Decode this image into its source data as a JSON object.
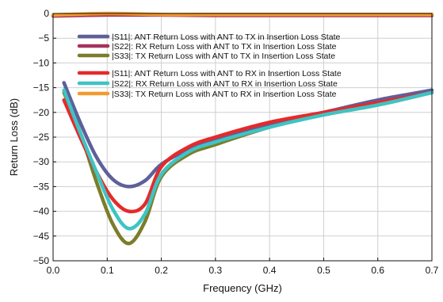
{
  "chart_data": {
    "type": "line",
    "xlabel": "Frequency (GHz)",
    "ylabel": "Return Loss (dB)",
    "xlim": [
      0,
      0.7
    ],
    "ylim": [
      -50,
      0
    ],
    "xticks": [
      0,
      0.1,
      0.2,
      0.3,
      0.4,
      0.5,
      0.6,
      0.7
    ],
    "yticks": [
      0,
      -5,
      -10,
      -15,
      -20,
      -25,
      -30,
      -35,
      -40,
      -45,
      -50
    ],
    "xtick_labels": [
      "0.0",
      "0.1",
      "0.2",
      "0.3",
      "0.4",
      "0.5",
      "0.6",
      "0.7"
    ],
    "ytick_labels": [
      "0",
      "−5",
      "−10",
      "−15",
      "−20",
      "−25",
      "−30",
      "−35",
      "−40",
      "−45",
      "−50"
    ],
    "grid": true,
    "legend_position": "top-center",
    "series": [
      {
        "name": "|S11|: ANT Return Loss with ANT to TX in Insertion Loss State",
        "color": "#5f5f9a",
        "x": [
          0.02,
          0.05,
          0.08,
          0.11,
          0.14,
          0.17,
          0.2,
          0.25,
          0.3,
          0.4,
          0.5,
          0.6,
          0.7
        ],
        "y": [
          -14,
          -22,
          -29,
          -33.5,
          -35,
          -33.8,
          -30.5,
          -27.5,
          -25.5,
          -22.5,
          -20,
          -17.5,
          -15.5
        ]
      },
      {
        "name": "|S22|: RX Return Loss with ANT to TX in Insertion Loss State",
        "color": "#a8325c",
        "x": [
          0.0,
          0.1,
          0.2,
          0.3,
          0.4,
          0.5,
          0.6,
          0.7
        ],
        "y": [
          -0.5,
          -0.3,
          -0.3,
          -0.4,
          -0.4,
          -0.4,
          -0.4,
          -0.4
        ]
      },
      {
        "name": "|S33|: TX Return Loss with ANT to TX in Insertion Loss State",
        "color": "#7b7d2a",
        "x": [
          0.02,
          0.05,
          0.08,
          0.11,
          0.14,
          0.17,
          0.2,
          0.25,
          0.3,
          0.4,
          0.5,
          0.6,
          0.7
        ],
        "y": [
          -16,
          -24,
          -34,
          -42.5,
          -46.5,
          -42,
          -33,
          -28.5,
          -26.5,
          -23,
          -20.5,
          -18.5,
          -16
        ]
      },
      {
        "name": "|S11|: ANT Return Loss with ANT to RX in Insertion Loss State",
        "color": "#e52a2a",
        "x": [
          0.02,
          0.05,
          0.08,
          0.11,
          0.14,
          0.17,
          0.2,
          0.25,
          0.3,
          0.4,
          0.5,
          0.6,
          0.7
        ],
        "y": [
          -17.5,
          -25,
          -32,
          -37.5,
          -40,
          -38.5,
          -31,
          -27,
          -25,
          -22,
          -20,
          -18,
          -16
        ]
      },
      {
        "name": "|S22|: RX Return Loss with ANT to RX in Insertion Loss State",
        "color": "#3ec4c4",
        "x": [
          0.02,
          0.05,
          0.08,
          0.11,
          0.14,
          0.17,
          0.2,
          0.25,
          0.3,
          0.4,
          0.5,
          0.6,
          0.7
        ],
        "y": [
          -15.5,
          -24,
          -32,
          -39.5,
          -43.5,
          -40.5,
          -32.5,
          -28,
          -26,
          -23,
          -20.5,
          -18.5,
          -16
        ]
      },
      {
        "name": "|S33|: TX Return Loss with ANT to RX in Insertion Loss State",
        "color": "#f39a2e",
        "x": [
          0.0,
          0.1,
          0.2,
          0.3,
          0.4,
          0.5,
          0.6,
          0.7
        ],
        "y": [
          -0.3,
          0.0,
          -0.2,
          -0.2,
          -0.2,
          -0.2,
          -0.2,
          -0.2
        ]
      }
    ]
  }
}
